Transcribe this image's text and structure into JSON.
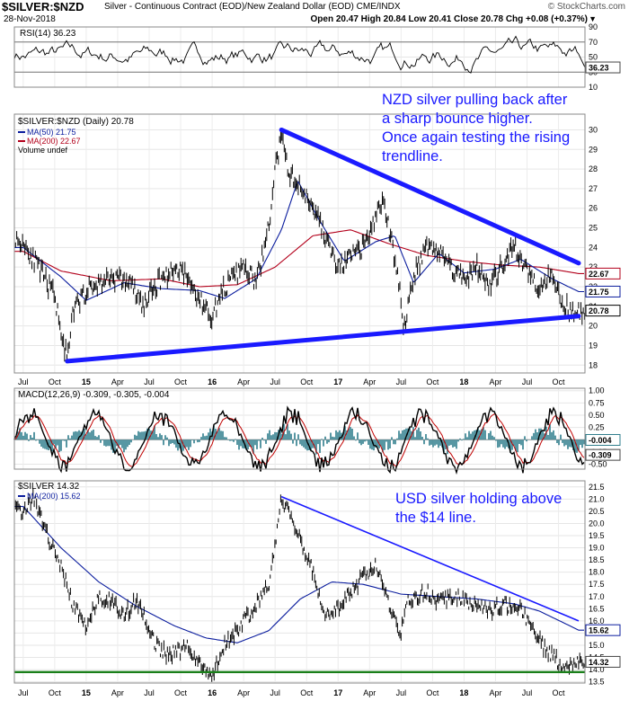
{
  "header": {
    "symbol": "$SILVER:$NZD",
    "description": "Silver - Continuous Contract (EOD)/New Zealand Dollar (EOD)",
    "exchange": "CME/INDX",
    "date": "28-Nov-2018",
    "ohlc": "Open 20.47  High 20.84  Low 20.41  Close 20.78  Chg +0.08 (+0.37%)",
    "copyright": "© StockCharts.com"
  },
  "annotations": {
    "nzd_lines": [
      "NZD silver pulling back after",
      "a sharp bounce higher.",
      "Once again testing the rising",
      "trendline."
    ],
    "usd_lines": [
      "USD silver holding above",
      "the $14 line."
    ]
  },
  "colors": {
    "price": "#000000",
    "ma50": "#0b1d9e",
    "ma200": "#b3001b",
    "trend": "#1a1aff",
    "macd": "#000000",
    "signal": "#c00000",
    "hist": "#2e7d8c",
    "support": "#1a7f1a"
  },
  "chart_data": [
    {
      "type": "line",
      "title": "RSI(14) 36.23",
      "series": [
        {
          "name": "RSI(14)",
          "last": 36.23
        }
      ],
      "y_ticks": [
        "90",
        "70",
        "50",
        "30",
        "10"
      ],
      "ylim": [
        10,
        90
      ],
      "reference_lines": [
        30,
        70
      ]
    },
    {
      "type": "line",
      "title": "$SILVER:$NZD (Daily) 20.78",
      "series": [
        {
          "name": "MA(50)",
          "last": 21.75
        },
        {
          "name": "MA(200)",
          "last": 22.67
        }
      ],
      "legend_extra": "Volume undef",
      "price_points": [
        [
          2014.5,
          24.3
        ],
        [
          2014.6,
          23.2
        ],
        [
          2014.75,
          21.5
        ],
        [
          2014.85,
          18.2
        ],
        [
          2014.9,
          20.8
        ],
        [
          2015.0,
          21.8
        ],
        [
          2015.2,
          22.5
        ],
        [
          2015.35,
          22.2
        ],
        [
          2015.45,
          21.0
        ],
        [
          2015.6,
          22.5
        ],
        [
          2015.75,
          23.0
        ],
        [
          2015.9,
          21.3
        ],
        [
          2016.0,
          20.5
        ],
        [
          2016.1,
          22.0
        ],
        [
          2016.25,
          23.0
        ],
        [
          2016.35,
          22.2
        ],
        [
          2016.45,
          25.0
        ],
        [
          2016.5,
          28.0
        ],
        [
          2016.55,
          29.6
        ],
        [
          2016.6,
          28.0
        ],
        [
          2016.7,
          27.0
        ],
        [
          2016.8,
          26.2
        ],
        [
          2016.9,
          24.5
        ],
        [
          2017.0,
          22.9
        ],
        [
          2017.1,
          23.5
        ],
        [
          2017.2,
          24.0
        ],
        [
          2017.3,
          25.5
        ],
        [
          2017.35,
          26.5
        ],
        [
          2017.45,
          23.5
        ],
        [
          2017.5,
          21.5
        ],
        [
          2017.52,
          19.8
        ],
        [
          2017.6,
          22.5
        ],
        [
          2017.7,
          24.2
        ],
        [
          2017.8,
          23.8
        ],
        [
          2017.9,
          23.0
        ],
        [
          2018.0,
          22.4
        ],
        [
          2018.1,
          23.0
        ],
        [
          2018.2,
          22.0
        ],
        [
          2018.3,
          23.0
        ],
        [
          2018.4,
          24.0
        ],
        [
          2018.5,
          22.8
        ],
        [
          2018.6,
          22.0
        ],
        [
          2018.7,
          22.8
        ],
        [
          2018.78,
          21.2
        ],
        [
          2018.85,
          20.6
        ],
        [
          2018.91,
          20.78
        ]
      ],
      "ma200_points": [
        [
          2014.5,
          23.8
        ],
        [
          2014.8,
          22.8
        ],
        [
          2015.2,
          22.3
        ],
        [
          2015.6,
          22.4
        ],
        [
          2015.9,
          22.0
        ],
        [
          2016.2,
          22.1
        ],
        [
          2016.5,
          23.0
        ],
        [
          2016.8,
          24.6
        ],
        [
          2017.1,
          24.9
        ],
        [
          2017.4,
          24.2
        ],
        [
          2017.7,
          23.6
        ],
        [
          2018.0,
          23.3
        ],
        [
          2018.3,
          23.1
        ],
        [
          2018.6,
          23.0
        ],
        [
          2018.91,
          22.67
        ]
      ],
      "ma50_points": [
        [
          2014.5,
          24.0
        ],
        [
          2014.8,
          22.5
        ],
        [
          2015.0,
          21.3
        ],
        [
          2015.3,
          22.2
        ],
        [
          2015.6,
          21.9
        ],
        [
          2015.9,
          21.8
        ],
        [
          2016.1,
          21.4
        ],
        [
          2016.35,
          22.4
        ],
        [
          2016.55,
          24.9
        ],
        [
          2016.68,
          27.4
        ],
        [
          2016.85,
          25.4
        ],
        [
          2017.05,
          23.3
        ],
        [
          2017.3,
          24.3
        ],
        [
          2017.45,
          24.6
        ],
        [
          2017.6,
          22.2
        ],
        [
          2017.8,
          23.7
        ],
        [
          2018.0,
          22.7
        ],
        [
          2018.25,
          22.9
        ],
        [
          2018.45,
          23.4
        ],
        [
          2018.7,
          22.4
        ],
        [
          2018.91,
          21.75
        ]
      ],
      "trendlines": [
        {
          "from": [
            2016.55,
            30.0
          ],
          "to": [
            2018.91,
            23.2
          ]
        },
        {
          "from": [
            2014.85,
            18.2
          ],
          "to": [
            2018.91,
            20.5
          ]
        }
      ],
      "y_ticks": [
        "30",
        "29",
        "28",
        "27",
        "26",
        "25",
        "24",
        "23",
        "22",
        "21",
        "20",
        "19",
        "18"
      ],
      "ylim": [
        17.6,
        30.8
      ],
      "axis_tags": [
        "22.67",
        "21.75",
        "20.78"
      ]
    },
    {
      "type": "line",
      "title": "MACD(12,26,9) -0.309, -0.305, -0.004",
      "series": [
        {
          "name": "MACD",
          "last": -0.309
        },
        {
          "name": "Signal",
          "last": -0.305
        },
        {
          "name": "Histogram",
          "last": -0.004
        }
      ],
      "y_ticks": [
        "1.00",
        "0.75",
        "0.50",
        "0.25",
        "0.00",
        "-0.25",
        "-0.50"
      ],
      "ylim": [
        -0.6,
        1.05
      ],
      "axis_tags": [
        "-0.004",
        "-0.309"
      ]
    },
    {
      "type": "line",
      "title": "$SILVER 14.32",
      "series": [
        {
          "name": "MA(200)",
          "last": 15.62
        }
      ],
      "price_points": [
        [
          2014.5,
          20.5
        ],
        [
          2014.58,
          21.1
        ],
        [
          2014.7,
          19.4
        ],
        [
          2014.8,
          18.2
        ],
        [
          2014.9,
          16.6
        ],
        [
          2015.0,
          15.8
        ],
        [
          2015.1,
          17.0
        ],
        [
          2015.2,
          16.8
        ],
        [
          2015.3,
          16.2
        ],
        [
          2015.4,
          16.9
        ],
        [
          2015.55,
          15.0
        ],
        [
          2015.65,
          14.6
        ],
        [
          2015.8,
          14.9
        ],
        [
          2015.9,
          14.2
        ],
        [
          2016.0,
          13.8
        ],
        [
          2016.1,
          15.0
        ],
        [
          2016.3,
          16.3
        ],
        [
          2016.45,
          17.5
        ],
        [
          2016.5,
          19.0
        ],
        [
          2016.55,
          21.0
        ],
        [
          2016.62,
          20.4
        ],
        [
          2016.7,
          19.4
        ],
        [
          2016.8,
          18.0
        ],
        [
          2016.9,
          16.2
        ],
        [
          2017.0,
          16.5
        ],
        [
          2017.2,
          17.8
        ],
        [
          2017.3,
          18.3
        ],
        [
          2017.4,
          16.7
        ],
        [
          2017.5,
          15.5
        ],
        [
          2017.55,
          16.8
        ],
        [
          2017.7,
          17.2
        ],
        [
          2017.8,
          16.8
        ],
        [
          2017.95,
          17.0
        ],
        [
          2018.1,
          16.6
        ],
        [
          2018.2,
          16.4
        ],
        [
          2018.3,
          16.7
        ],
        [
          2018.45,
          16.5
        ],
        [
          2018.55,
          15.6
        ],
        [
          2018.65,
          14.8
        ],
        [
          2018.75,
          14.3
        ],
        [
          2018.85,
          14.2
        ],
        [
          2018.91,
          14.32
        ]
      ],
      "ma200_points": [
        [
          2014.5,
          20.7
        ],
        [
          2014.8,
          19.0
        ],
        [
          2015.1,
          17.6
        ],
        [
          2015.4,
          16.6
        ],
        [
          2015.7,
          15.8
        ],
        [
          2015.95,
          15.3
        ],
        [
          2016.2,
          15.1
        ],
        [
          2016.45,
          15.6
        ],
        [
          2016.7,
          16.9
        ],
        [
          2016.95,
          17.6
        ],
        [
          2017.2,
          17.5
        ],
        [
          2017.5,
          17.1
        ],
        [
          2017.8,
          17.0
        ],
        [
          2018.1,
          16.9
        ],
        [
          2018.4,
          16.7
        ],
        [
          2018.6,
          16.4
        ],
        [
          2018.91,
          15.62
        ]
      ],
      "trendlines": [
        {
          "from": [
            2016.55,
            21.1
          ],
          "to": [
            2018.91,
            16.0
          ]
        }
      ],
      "support_line": 13.9,
      "y_ticks": [
        "21.5",
        "21.0",
        "20.5",
        "20.0",
        "19.5",
        "19.0",
        "18.5",
        "18.0",
        "17.5",
        "17.0",
        "16.5",
        "16.0",
        "15.5",
        "15.0",
        "14.5",
        "14.0",
        "13.5"
      ],
      "ylim": [
        13.45,
        21.75
      ],
      "axis_tags": [
        "15.62",
        "14.32"
      ]
    }
  ],
  "x_axis": {
    "labels": [
      {
        "t": 2014.5,
        "text": "Jul"
      },
      {
        "t": 2014.75,
        "text": "Oct"
      },
      {
        "t": 2015.0,
        "text": "15"
      },
      {
        "t": 2015.25,
        "text": "Apr"
      },
      {
        "t": 2015.5,
        "text": "Jul"
      },
      {
        "t": 2015.75,
        "text": "Oct"
      },
      {
        "t": 2016.0,
        "text": "16"
      },
      {
        "t": 2016.25,
        "text": "Apr"
      },
      {
        "t": 2016.5,
        "text": "Jul"
      },
      {
        "t": 2016.75,
        "text": "Oct"
      },
      {
        "t": 2017.0,
        "text": "17"
      },
      {
        "t": 2017.25,
        "text": "Apr"
      },
      {
        "t": 2017.5,
        "text": "Jul"
      },
      {
        "t": 2017.75,
        "text": "Oct"
      },
      {
        "t": 2018.0,
        "text": "18"
      },
      {
        "t": 2018.25,
        "text": "Apr"
      },
      {
        "t": 2018.5,
        "text": "Jul"
      },
      {
        "t": 2018.75,
        "text": "Oct"
      }
    ],
    "range": [
      2014.43,
      2018.96
    ]
  }
}
